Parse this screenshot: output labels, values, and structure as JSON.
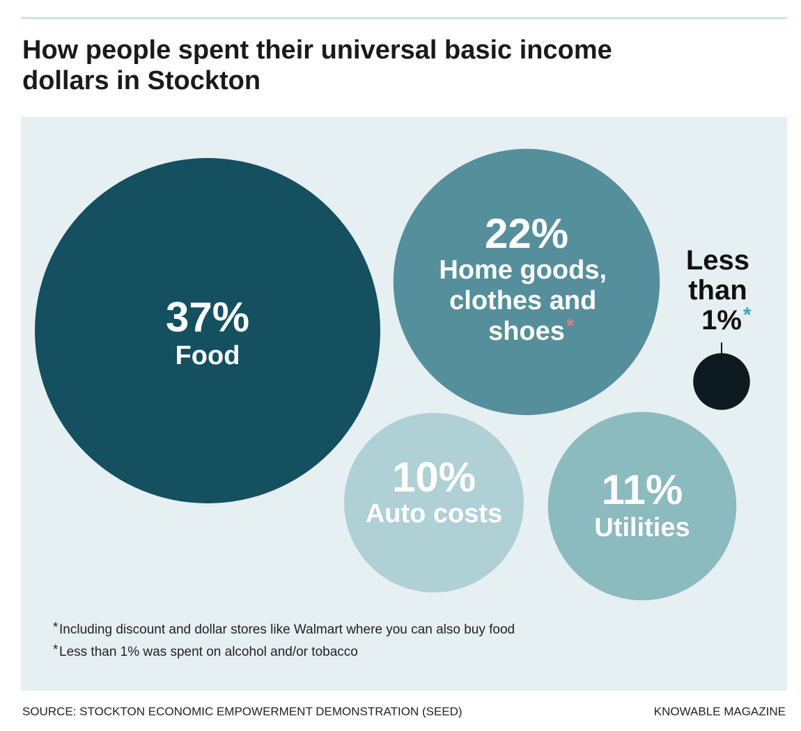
{
  "chart_data": {
    "type": "bubble",
    "title": "How people spent their universal basic income dollars in Stockton",
    "categories": [
      "Food",
      "Home goods, clothes and shoes",
      "Auto costs",
      "Utilities",
      null
    ],
    "values": [
      37,
      22,
      10,
      11,
      1
    ],
    "value_labels": [
      "37%",
      "22%",
      "10%",
      "11%",
      "Less than 1%"
    ],
    "colors": [
      "#14505f",
      "#558f9b",
      "#afd0d5",
      "#8bbabf",
      "#0d1a20"
    ],
    "markers": [
      null,
      "*",
      null,
      null,
      "*"
    ],
    "marker_colors": [
      null,
      "#e07a8a",
      null,
      null,
      "#3aa6c9"
    ],
    "footnotes": [
      {
        "marker": "*",
        "color": "#e07a8a",
        "text": "Including discount and dollar stores like Walmart where you can also buy food"
      },
      {
        "marker": "*",
        "color": "#3aa6c9",
        "text": "Less than 1% was spent on alcohol and/or tobacco"
      }
    ],
    "source": "SOURCE: STOCKTON ECONOMIC EMPOWERMENT DEMONSTRATION (SEED)",
    "credit": "KNOWABLE MAGAZINE"
  }
}
